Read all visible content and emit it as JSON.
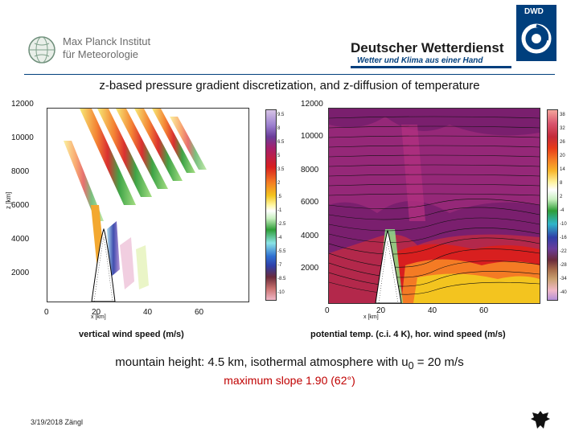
{
  "header": {
    "mpi_line1": "Max Planck Institut",
    "mpi_line2": "für Meteorologie",
    "dwd_name": "Deutscher Wetterdienst",
    "dwd_slogan": "Wetter und Klima aus einer Hand",
    "dwd_abbr": "DWD"
  },
  "slide": {
    "title": "z-based pressure gradient discretization, and z-diffusion of temperature",
    "info_line1_pre": "mountain height: 4.5 km, isothermal atmosphere with u",
    "info_line1_sub": "0",
    "info_line1_post": " = 20 m/s",
    "info_line2": "maximum slope 1.90 (62°)",
    "footer": "3/19/2018 Zängl"
  },
  "left_panel": {
    "caption": "vertical wind speed (m/s)",
    "ylabel": "z [km]",
    "xlabel": "x [km]",
    "y_ticks": [
      "12000",
      "10000",
      "8000",
      "6000",
      "4000",
      "2000"
    ],
    "x_ticks": [
      "0",
      "20",
      "40",
      "60"
    ],
    "colorbar_labels": [
      "9.5",
      "8",
      "6.5",
      "5",
      "3.5",
      "2",
      ".5",
      "-1",
      "-2.5",
      "-4",
      "-5.5",
      "-7",
      "-8.5",
      "-10"
    ]
  },
  "right_panel": {
    "caption": "potential temp. (c.i. 4 K), hor. wind speed (m/s)",
    "xlabel": "x [km]",
    "y_ticks": [
      "12000",
      "10000",
      "8000",
      "6000",
      "4000",
      "2000"
    ],
    "x_ticks": [
      "0",
      "20",
      "40",
      "60"
    ],
    "colorbar_labels": [
      "38",
      "32",
      "26",
      "20",
      "14",
      "8",
      "2",
      "-4",
      "-10",
      "-16",
      "-22",
      "-28",
      "-34",
      "-40"
    ]
  },
  "colors": {
    "dwd_blue": "#003f7d",
    "info_red": "#c00000"
  }
}
